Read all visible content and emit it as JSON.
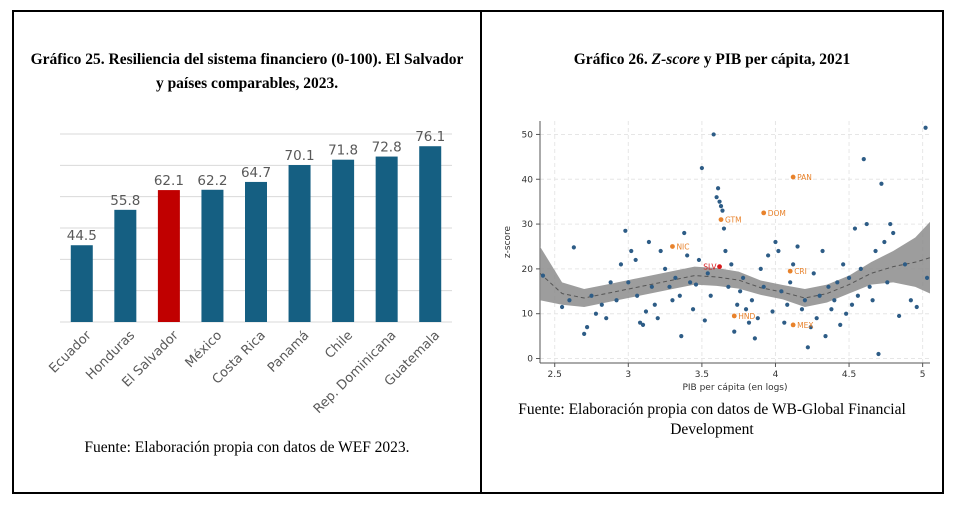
{
  "left_panel": {
    "title": "Gráfico 25. Resiliencia del sistema financiero (0-100). El Salvador y países comparables, 2023.",
    "source": "Fuente: Elaboración propia con datos de WEF 2023."
  },
  "right_panel": {
    "title_prefix": "Gráfico 26. ",
    "title_italic": "Z-score",
    "title_suffix": " y PIB per cápita, 2021",
    "source": "Fuente: Elaboración propia con datos de WB-Global Financial Development"
  },
  "chart_data": [
    {
      "type": "bar",
      "title": "",
      "categories": [
        "Ecuador",
        "Honduras",
        "El Salvador",
        "México",
        "Costa Rica",
        "Panamá",
        "Chile",
        "Rep. Dominicana",
        "Guatemala"
      ],
      "values": [
        44.5,
        55.8,
        62.1,
        62.2,
        64.7,
        70.1,
        71.8,
        72.8,
        76.1
      ],
      "value_labels": [
        "44.5",
        "55.8",
        "62.1",
        "62.2",
        "64.7",
        "70.1",
        "71.8",
        "72.8",
        "76.1"
      ],
      "highlight": "El Salvador",
      "colors": {
        "bar": "#155f82",
        "highlight": "#c00000",
        "label": "#595959",
        "grid": "#d9d9d9"
      },
      "ylim": [
        20,
        80
      ],
      "grid": true,
      "xlabel": "",
      "ylabel": ""
    },
    {
      "type": "scatter",
      "title": "",
      "xlabel": "PIB per cápita (en logs)",
      "ylabel": "z-score",
      "xlim": [
        2.4,
        5.05
      ],
      "ylim": [
        -1,
        53
      ],
      "xticks": [
        "2.5",
        "3",
        "3.5",
        "4",
        "4.5",
        "5"
      ],
      "yticks": [
        "0",
        "10",
        "20",
        "30",
        "40",
        "50"
      ],
      "grid": true,
      "colors": {
        "point": "#2d5c86",
        "highlight": "#e8822b",
        "focus": "#d7191c",
        "band": "#8c8c8c",
        "trend": "#555555"
      },
      "points": [
        [
          2.42,
          18.5
        ],
        [
          2.55,
          11.5
        ],
        [
          2.6,
          13
        ],
        [
          2.63,
          24.8
        ],
        [
          2.7,
          5.5
        ],
        [
          2.72,
          7
        ],
        [
          2.75,
          14
        ],
        [
          2.78,
          10
        ],
        [
          2.82,
          12
        ],
        [
          2.85,
          9
        ],
        [
          2.88,
          17
        ],
        [
          2.92,
          13
        ],
        [
          2.95,
          21
        ],
        [
          2.98,
          28.5
        ],
        [
          3.0,
          17
        ],
        [
          3.02,
          24
        ],
        [
          3.05,
          22
        ],
        [
          3.06,
          14
        ],
        [
          3.08,
          8
        ],
        [
          3.1,
          7.5
        ],
        [
          3.12,
          10.5
        ],
        [
          3.14,
          26
        ],
        [
          3.16,
          16
        ],
        [
          3.18,
          12
        ],
        [
          3.2,
          9
        ],
        [
          3.22,
          24
        ],
        [
          3.25,
          20
        ],
        [
          3.28,
          16
        ],
        [
          3.3,
          13
        ],
        [
          3.32,
          18
        ],
        [
          3.35,
          14
        ],
        [
          3.36,
          5
        ],
        [
          3.38,
          28
        ],
        [
          3.4,
          23
        ],
        [
          3.42,
          17
        ],
        [
          3.44,
          11
        ],
        [
          3.46,
          16.5
        ],
        [
          3.48,
          22
        ],
        [
          3.5,
          42.5
        ],
        [
          3.52,
          8.5
        ],
        [
          3.54,
          19
        ],
        [
          3.56,
          14
        ],
        [
          3.58,
          50
        ],
        [
          3.6,
          36
        ],
        [
          3.61,
          38
        ],
        [
          3.62,
          35
        ],
        [
          3.63,
          34
        ],
        [
          3.64,
          33
        ],
        [
          3.65,
          29
        ],
        [
          3.66,
          24
        ],
        [
          3.68,
          16
        ],
        [
          3.7,
          21
        ],
        [
          3.72,
          6
        ],
        [
          3.74,
          12
        ],
        [
          3.76,
          15
        ],
        [
          3.78,
          18
        ],
        [
          3.8,
          11
        ],
        [
          3.82,
          8
        ],
        [
          3.84,
          13
        ],
        [
          3.86,
          4.5
        ],
        [
          3.88,
          9
        ],
        [
          3.9,
          20
        ],
        [
          3.92,
          16
        ],
        [
          3.95,
          23
        ],
        [
          3.98,
          10.5
        ],
        [
          4.0,
          26
        ],
        [
          4.02,
          24
        ],
        [
          4.04,
          15
        ],
        [
          4.06,
          8
        ],
        [
          4.08,
          12
        ],
        [
          4.1,
          17
        ],
        [
          4.12,
          21
        ],
        [
          4.15,
          25
        ],
        [
          4.18,
          11
        ],
        [
          4.2,
          13
        ],
        [
          4.22,
          2.5
        ],
        [
          4.24,
          7
        ],
        [
          4.26,
          19
        ],
        [
          4.28,
          9
        ],
        [
          4.3,
          14
        ],
        [
          4.32,
          24
        ],
        [
          4.34,
          5
        ],
        [
          4.36,
          16
        ],
        [
          4.38,
          11
        ],
        [
          4.4,
          13
        ],
        [
          4.42,
          17
        ],
        [
          4.44,
          7.5
        ],
        [
          4.46,
          21
        ],
        [
          4.48,
          10
        ],
        [
          4.5,
          18
        ],
        [
          4.52,
          12
        ],
        [
          4.54,
          29
        ],
        [
          4.56,
          14
        ],
        [
          4.58,
          20
        ],
        [
          4.6,
          44.5
        ],
        [
          4.62,
          30
        ],
        [
          4.64,
          16
        ],
        [
          4.66,
          13
        ],
        [
          4.68,
          24
        ],
        [
          4.7,
          1
        ],
        [
          4.72,
          39
        ],
        [
          4.74,
          26
        ],
        [
          4.76,
          17
        ],
        [
          4.78,
          30
        ],
        [
          4.8,
          28
        ],
        [
          4.84,
          9.5
        ],
        [
          4.88,
          21
        ],
        [
          4.92,
          13
        ],
        [
          4.96,
          11.5
        ],
        [
          5.02,
          51.5
        ],
        [
          5.03,
          18
        ]
      ],
      "labeled_points": [
        {
          "label": "PAN",
          "x": 4.12,
          "y": 40.5
        },
        {
          "label": "DOM",
          "x": 3.92,
          "y": 32.5
        },
        {
          "label": "GTM",
          "x": 3.63,
          "y": 31
        },
        {
          "label": "NIC",
          "x": 3.3,
          "y": 25
        },
        {
          "label": "CRI",
          "x": 4.1,
          "y": 19.5
        },
        {
          "label": "SLV",
          "x": 3.62,
          "y": 20.5
        },
        {
          "label": "HND",
          "x": 3.72,
          "y": 9.5
        },
        {
          "label": "MEX",
          "x": 4.12,
          "y": 7.5
        }
      ],
      "focus_label": "SLV",
      "trend": {
        "x": [
          2.4,
          2.55,
          2.7,
          2.85,
          3.0,
          3.15,
          3.3,
          3.45,
          3.6,
          3.75,
          3.9,
          4.05,
          4.2,
          4.35,
          4.5,
          4.65,
          4.8,
          4.95,
          5.05
        ],
        "y": [
          19,
          14.5,
          13.5,
          14.5,
          15.5,
          16.5,
          17.5,
          18.5,
          18.2,
          17.5,
          15.8,
          14.8,
          13.5,
          14.5,
          16.5,
          19,
          20.5,
          21.5,
          22.5
        ],
        "lower": [
          13,
          12,
          11.5,
          12.5,
          13.5,
          14.5,
          15.5,
          16.5,
          16.2,
          15.6,
          14.2,
          13.2,
          11.5,
          12.5,
          14.5,
          16.5,
          17,
          16,
          14.5
        ],
        "upper": [
          25,
          17,
          15.5,
          16.5,
          17.5,
          18.5,
          19.5,
          20.5,
          20.2,
          19.4,
          17.4,
          16.4,
          15.5,
          16.5,
          18.5,
          21.5,
          24,
          27,
          30.5
        ]
      }
    }
  ]
}
